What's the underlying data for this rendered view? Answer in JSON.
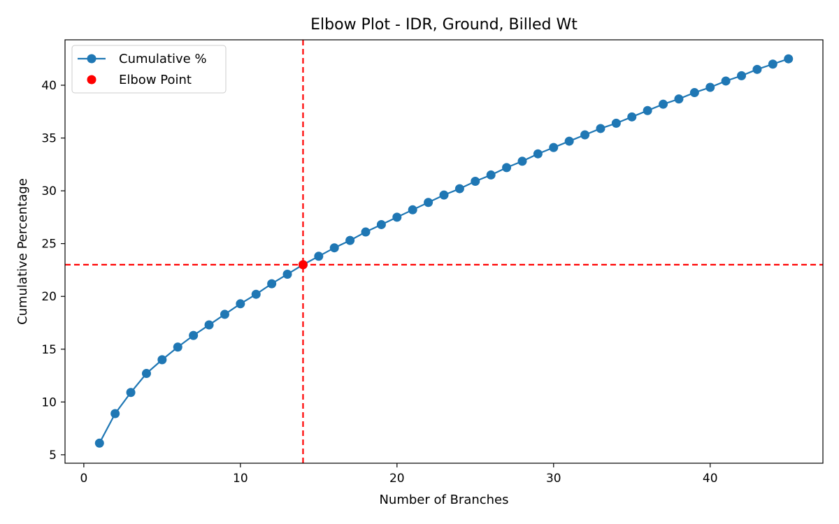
{
  "chart_data": {
    "type": "line",
    "title": "Elbow Plot - IDR, Ground, Billed Wt",
    "xlabel": "Number of Branches",
    "ylabel": "Cumulative Percentage",
    "xlim": [
      -1.2,
      47.2
    ],
    "ylim": [
      4.2,
      44.3
    ],
    "xticks": [
      0,
      10,
      20,
      30,
      40
    ],
    "yticks": [
      5,
      10,
      15,
      20,
      25,
      30,
      35,
      40
    ],
    "grid": false,
    "legend_position": "upper-left",
    "series": [
      {
        "name": "Cumulative %",
        "color": "#1f77b4",
        "marker": "circle",
        "x": [
          1,
          2,
          3,
          4,
          5,
          6,
          7,
          8,
          9,
          10,
          11,
          12,
          13,
          14,
          15,
          16,
          17,
          18,
          19,
          20,
          21,
          22,
          23,
          24,
          25,
          26,
          27,
          28,
          29,
          30,
          31,
          32,
          33,
          34,
          35,
          36,
          37,
          38,
          39,
          40,
          41,
          42,
          43,
          44,
          45
        ],
        "y": [
          6.1,
          8.9,
          10.9,
          12.7,
          14.0,
          15.2,
          16.3,
          17.3,
          18.3,
          19.3,
          20.2,
          21.2,
          22.1,
          23.0,
          23.8,
          24.6,
          25.3,
          26.1,
          26.8,
          27.5,
          28.2,
          28.9,
          29.6,
          30.2,
          30.9,
          31.5,
          32.2,
          32.8,
          33.5,
          34.1,
          34.7,
          35.3,
          35.9,
          36.4,
          37.0,
          37.6,
          38.2,
          38.7,
          39.3,
          39.8,
          40.4,
          40.9,
          41.5,
          42.0,
          42.5
        ]
      }
    ],
    "elbow_point": {
      "name": "Elbow Point",
      "x": 14,
      "y": 23.0,
      "color": "#ff0000"
    },
    "reference_lines": {
      "vertical_x": 14,
      "horizontal_y": 23.0,
      "color": "#ff0000",
      "style": "dashed"
    }
  }
}
